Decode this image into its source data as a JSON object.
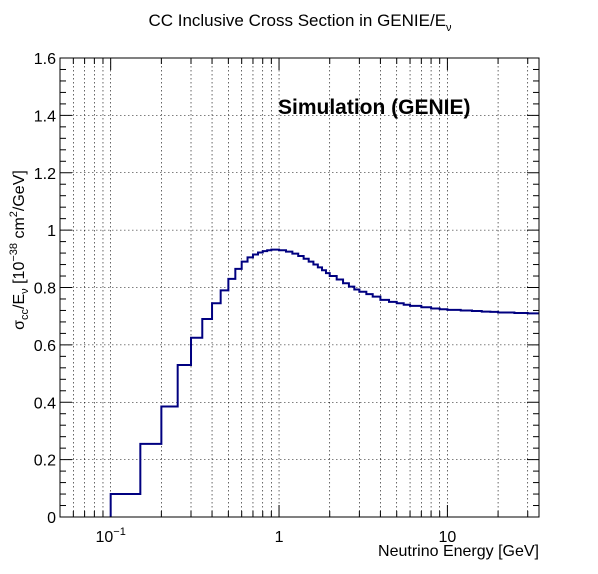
{
  "chart_data": {
    "type": "step",
    "title": "CC Inclusive Cross Section in GENIE/E",
    "title_sub": "ν",
    "xlabel": "Neutrino Energy [GeV]",
    "ylabel_parts": {
      "sigma": "σ",
      "cc": "cc",
      "sep": "/E",
      "nu": "ν",
      "bracket": " [10",
      "exp": "−38",
      "unit": " cm",
      "two": "2",
      "tail": "/GeV]"
    },
    "annotation": "Simulation (GENIE)",
    "xscale": "log",
    "xlim": [
      0.05,
      35
    ],
    "ylim": [
      0,
      1.6
    ],
    "grid": true,
    "line_color": "#000080",
    "xticks": [
      {
        "value": 0.1,
        "base": "10",
        "exp": "−1"
      },
      {
        "value": 1,
        "base": "1",
        "exp": ""
      },
      {
        "value": 10,
        "base": "10",
        "exp": ""
      }
    ],
    "yticks": [
      {
        "value": 0,
        "label": "0"
      },
      {
        "value": 0.2,
        "label": "0.2"
      },
      {
        "value": 0.4,
        "label": "0.4"
      },
      {
        "value": 0.6,
        "label": "0.6"
      },
      {
        "value": 0.8,
        "label": "0.8"
      },
      {
        "value": 1,
        "label": "1"
      },
      {
        "value": 1.2,
        "label": "1.2"
      },
      {
        "value": 1.4,
        "label": "1.4"
      },
      {
        "value": 1.6,
        "label": "1.6"
      }
    ],
    "bin_edges": [
      0.1,
      0.15,
      0.2,
      0.25,
      0.3,
      0.35,
      0.4,
      0.45,
      0.5,
      0.55,
      0.6,
      0.65,
      0.7,
      0.75,
      0.8,
      0.85,
      0.9,
      0.95,
      1.0,
      1.1,
      1.2,
      1.3,
      1.4,
      1.5,
      1.6,
      1.7,
      1.8,
      1.9,
      2.0,
      2.2,
      2.4,
      2.6,
      2.8,
      3.0,
      3.3,
      3.6,
      4.0,
      4.5,
      5.0,
      5.5,
      6.0,
      7.0,
      8.0,
      9.0,
      10,
      12,
      14,
      16,
      18,
      20,
      25,
      30,
      35
    ],
    "values": [
      0.08,
      0.255,
      0.385,
      0.53,
      0.625,
      0.69,
      0.745,
      0.79,
      0.83,
      0.865,
      0.89,
      0.905,
      0.915,
      0.922,
      0.927,
      0.93,
      0.932,
      0.932,
      0.93,
      0.925,
      0.918,
      0.91,
      0.9,
      0.89,
      0.88,
      0.87,
      0.86,
      0.85,
      0.84,
      0.828,
      0.815,
      0.803,
      0.793,
      0.785,
      0.777,
      0.768,
      0.757,
      0.75,
      0.745,
      0.74,
      0.736,
      0.731,
      0.727,
      0.724,
      0.722,
      0.72,
      0.718,
      0.716,
      0.715,
      0.713,
      0.711,
      0.71
    ]
  }
}
